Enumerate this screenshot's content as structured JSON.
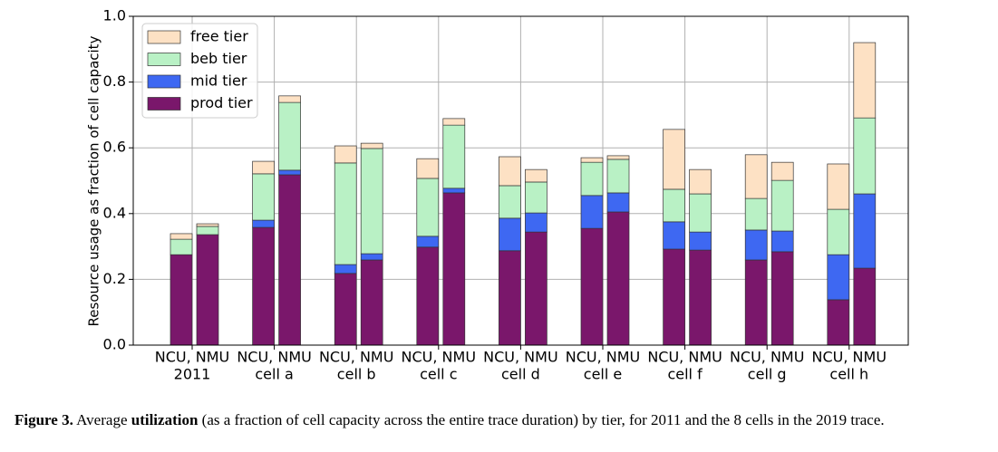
{
  "chart_data": {
    "type": "grouped-stacked-bar",
    "categories": [
      "2011",
      "cell a",
      "cell b",
      "cell c",
      "cell d",
      "cell e",
      "cell f",
      "cell g",
      "cell h"
    ],
    "pair_label": "NCU, NMU",
    "ylabel": "Resource usage as fraction of cell capacity",
    "ylim": [
      0,
      1
    ],
    "yticks": [
      {
        "value": 0,
        "label": "0.0"
      },
      {
        "value": 0.2,
        "label": "0.2"
      },
      {
        "value": 0.4,
        "label": "0.4"
      },
      {
        "value": 0.6,
        "label": "0.6"
      },
      {
        "value": 0.8,
        "label": "0.8"
      },
      {
        "value": 1,
        "label": "1.0"
      }
    ],
    "grid": true,
    "legend": "upper left",
    "series": [
      {
        "name": "prod tier",
        "color": "#7a176b",
        "values": [
          [
            0.275,
            0.336
          ],
          [
            0.358,
            0.518
          ],
          [
            0.218,
            0.259
          ],
          [
            0.298,
            0.463
          ],
          [
            0.287,
            0.344
          ],
          [
            0.355,
            0.405
          ],
          [
            0.292,
            0.289
          ],
          [
            0.259,
            0.284
          ],
          [
            0.138,
            0.234
          ]
        ]
      },
      {
        "name": "mid tier",
        "color": "#3e68f2",
        "values": [
          [
            0,
            0
          ],
          [
            0.022,
            0.014
          ],
          [
            0.027,
            0.019
          ],
          [
            0.033,
            0.014
          ],
          [
            0.099,
            0.058
          ],
          [
            0.1,
            0.058
          ],
          [
            0.083,
            0.055
          ],
          [
            0.091,
            0.063
          ],
          [
            0.137,
            0.226
          ]
        ]
      },
      {
        "name": "beb tier",
        "color": "#b9f1c5",
        "values": [
          [
            0.047,
            0.025
          ],
          [
            0.141,
            0.206
          ],
          [
            0.309,
            0.32
          ],
          [
            0.176,
            0.192
          ],
          [
            0.099,
            0.094
          ],
          [
            0.101,
            0.102
          ],
          [
            0.099,
            0.116
          ],
          [
            0.096,
            0.154
          ],
          [
            0.138,
            0.231
          ]
        ]
      },
      {
        "name": "free tier",
        "color": "#fde1c4",
        "values": [
          [
            0.017,
            0.008
          ],
          [
            0.038,
            0.02
          ],
          [
            0.052,
            0.016
          ],
          [
            0.06,
            0.02
          ],
          [
            0.088,
            0.038
          ],
          [
            0.014,
            0.011
          ],
          [
            0.182,
            0.074
          ],
          [
            0.133,
            0.055
          ],
          [
            0.138,
            0.229
          ]
        ]
      }
    ]
  },
  "caption": {
    "label": "Figure 3.",
    "parts": [
      " Average ",
      "utilization",
      " (as a fraction of cell capacity across the entire trace duration) by tier, for 2011 and the 8 cells in the 2019 trace."
    ]
  }
}
